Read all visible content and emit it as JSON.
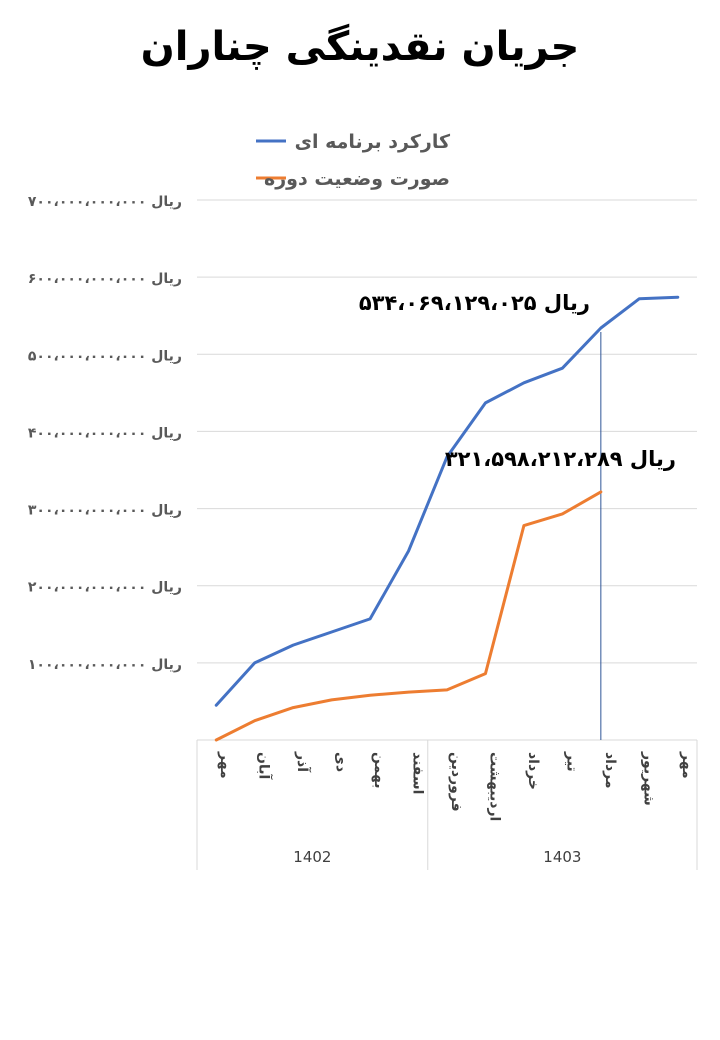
{
  "title": "جریان نقدینگی چناران",
  "chart_data": {
    "type": "line",
    "title": "جریان نقدینگی چناران",
    "categories": [
      "مهر",
      "آبان",
      "آذر",
      "دی",
      "بهمن",
      "اسفند",
      "فروردین",
      "اردیبهشت",
      "خرداد",
      "تیر",
      "مرداد",
      "شهریور",
      "مهر"
    ],
    "category_groups": [
      {
        "label": "1402",
        "count": 6
      },
      {
        "label": "1403",
        "count": 7
      }
    ],
    "y_tick_labels": [
      "ریال ۱۰۰،۰۰۰،۰۰۰،۰۰۰",
      "ریال ۲۰۰،۰۰۰،۰۰۰،۰۰۰",
      "ریال ۳۰۰،۰۰۰،۰۰۰،۰۰۰",
      "ریال ۴۰۰،۰۰۰،۰۰۰،۰۰۰",
      "ریال ۵۰۰،۰۰۰،۰۰۰،۰۰۰",
      "ریال ۶۰۰،۰۰۰،۰۰۰،۰۰۰",
      "ریال ۷۰۰،۰۰۰،۰۰۰،۰۰۰"
    ],
    "ylim": [
      0,
      700000000000
    ],
    "y_ticks": [
      100000000000,
      200000000000,
      300000000000,
      400000000000,
      500000000000,
      600000000000,
      700000000000
    ],
    "grid": true,
    "legend_position": "top",
    "series": [
      {
        "name": "کارکرد برنامه ای",
        "color": "#4472c4",
        "values": [
          45000000000,
          100000000000,
          123000000000,
          140000000000,
          157000000000,
          245000000000,
          367000000000,
          437000000000,
          463000000000,
          482000000000,
          534069129025,
          572000000000,
          574000000000
        ]
      },
      {
        "name": "صورت وضعیت دوره",
        "color": "#ed7d31",
        "values": [
          0,
          25000000000,
          42000000000,
          52000000000,
          58000000000,
          62000000000,
          65000000000,
          86000000000,
          278000000000,
          293000000000,
          321598212289,
          null,
          null
        ]
      }
    ],
    "annotations": [
      {
        "text": "۵۳۴،۰۶۹،۱۲۹،۰۲۵ ریال"
      },
      {
        "text": "۳۲۱،۵۹۸،۲۱۲،۲۸۹ ریال"
      }
    ],
    "marker_line_category_index": 10
  }
}
